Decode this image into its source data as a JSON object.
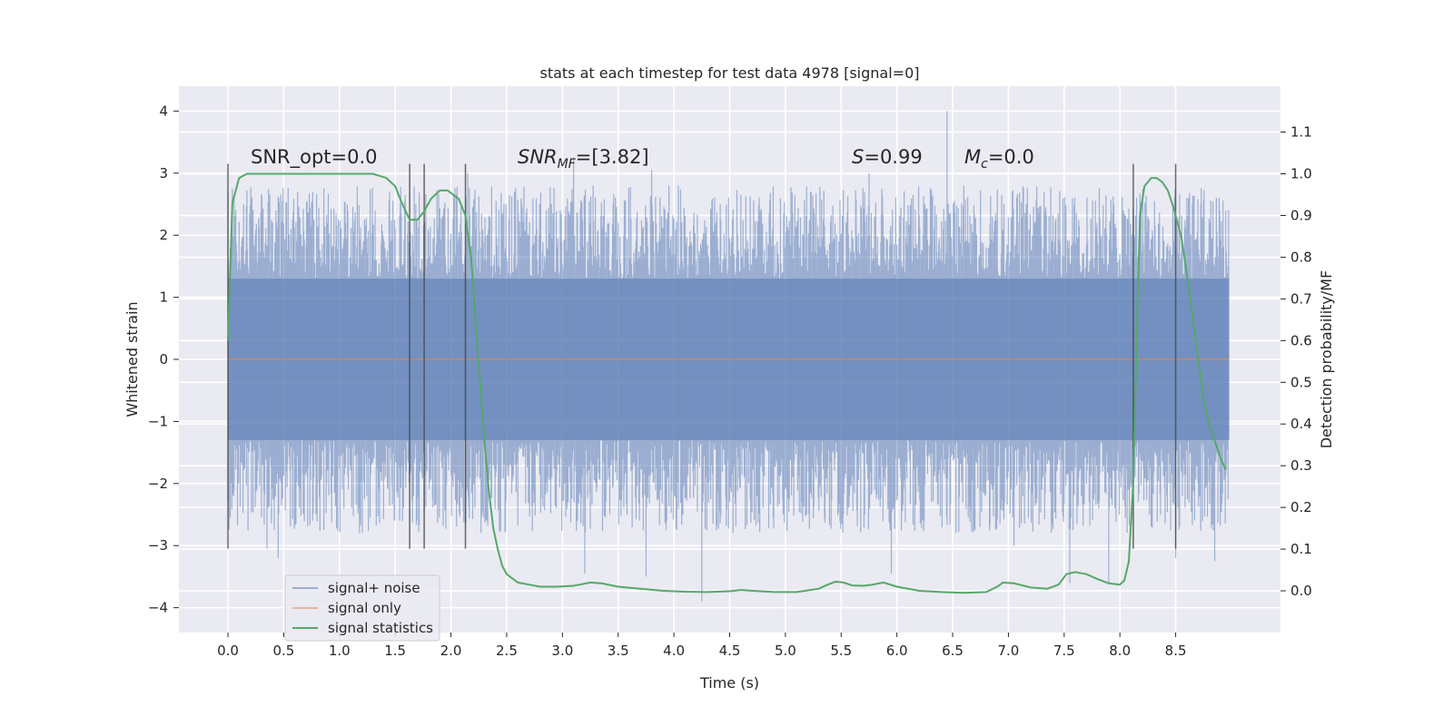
{
  "chart_data": {
    "type": "line",
    "title": "stats at each timestep for test data 4978 [signal=0]",
    "xlabel": "Time (s)",
    "ylabel": "Whitened strain",
    "y2label": "Detection probability/MF",
    "xlim": [
      -0.44,
      9.44
    ],
    "ylim": [
      -4.4,
      4.4
    ],
    "y2lim": [
      -0.1,
      1.21
    ],
    "xticks": [
      0.0,
      0.5,
      1.0,
      1.5,
      2.0,
      2.5,
      3.0,
      3.5,
      4.0,
      4.5,
      5.0,
      5.5,
      6.0,
      6.5,
      7.0,
      7.5,
      8.0,
      8.5
    ],
    "xtick_labels": [
      "0.0",
      "0.5",
      "1.0",
      "1.5",
      "2.0",
      "2.5",
      "3.0",
      "3.5",
      "4.0",
      "4.5",
      "5.0",
      "5.5",
      "6.0",
      "6.5",
      "7.0",
      "7.5",
      "8.0",
      "8.5"
    ],
    "yticks": [
      4,
      3,
      2,
      1,
      0,
      -1,
      -2,
      -3,
      -4
    ],
    "ytick_labels": [
      "4",
      "3",
      "2",
      "1",
      "0",
      "−1",
      "−2",
      "−3",
      "−4"
    ],
    "y2ticks": [
      1.1,
      1.0,
      0.9,
      0.8,
      0.7,
      0.6,
      0.5,
      0.4,
      0.3,
      0.2,
      0.1,
      0.0
    ],
    "y2tick_labels": [
      "1.1",
      "1.0",
      "0.9",
      "0.8",
      "0.7",
      "0.6",
      "0.5",
      "0.4",
      "0.3",
      "0.2",
      "0.1",
      "0.0"
    ],
    "annotations": {
      "snr_opt": "SNR_opt=0.0",
      "snr_mf_main": "SNR",
      "snr_mf_sub": "MF",
      "snr_mf_value": "=[3.82]",
      "s_main": "S",
      "s_value": "=0.99",
      "mc_main": "M",
      "mc_sub": "c",
      "mc_value": "=0.0"
    },
    "vlines": [
      0.0,
      1.63,
      1.76,
      2.13,
      8.12,
      8.5
    ],
    "vline_range": [
      -3.05,
      3.15
    ],
    "noise": {
      "t_start": 0.0,
      "t_end": 8.98,
      "core_amplitude": 1.3,
      "peak_amplitude": 2.8,
      "outliers": [
        {
          "t": 0.0,
          "v": 2.7
        },
        {
          "t": 0.35,
          "v": -3.05
        },
        {
          "t": 0.45,
          "v": -3.2
        },
        {
          "t": 1.45,
          "v": 2.7
        },
        {
          "t": 2.15,
          "v": 3.0
        },
        {
          "t": 3.1,
          "v": 3.25
        },
        {
          "t": 3.2,
          "v": -3.45
        },
        {
          "t": 3.8,
          "v": 3.05
        },
        {
          "t": 3.75,
          "v": -3.5
        },
        {
          "t": 4.25,
          "v": -3.9
        },
        {
          "t": 5.75,
          "v": 3.0
        },
        {
          "t": 5.95,
          "v": -3.45
        },
        {
          "t": 6.45,
          "v": 4.0
        },
        {
          "t": 6.6,
          "v": 2.8
        },
        {
          "t": 7.05,
          "v": -3.0
        },
        {
          "t": 7.55,
          "v": -3.6
        },
        {
          "t": 7.9,
          "v": -3.6
        },
        {
          "t": 8.5,
          "v": -3.2
        },
        {
          "t": 8.6,
          "v": 2.6
        },
        {
          "t": 8.85,
          "v": -3.25
        }
      ]
    },
    "series": [
      {
        "name": "signal+ noise",
        "axis": "left",
        "color": "#4c72b0",
        "opacity": 0.5
      },
      {
        "name": "signal only",
        "axis": "left",
        "color": "#dd8452",
        "opacity": 0.5,
        "x": [
          0.0,
          8.98
        ],
        "y": [
          0.0,
          0.0
        ]
      },
      {
        "name": "signal statistics",
        "axis": "right",
        "color": "#55a868",
        "x": [
          0.0,
          0.04,
          0.1,
          0.17,
          0.3,
          0.5,
          0.8,
          1.1,
          1.3,
          1.42,
          1.5,
          1.56,
          1.63,
          1.7,
          1.76,
          1.82,
          1.9,
          1.97,
          2.02,
          2.07,
          2.13,
          2.18,
          2.22,
          2.26,
          2.3,
          2.34,
          2.38,
          2.42,
          2.46,
          2.5,
          2.55,
          2.6,
          2.7,
          2.8,
          2.95,
          3.1,
          3.25,
          3.35,
          3.5,
          3.7,
          3.9,
          4.1,
          4.3,
          4.5,
          4.6,
          4.7,
          4.9,
          5.1,
          5.3,
          5.38,
          5.45,
          5.52,
          5.6,
          5.7,
          5.78,
          5.88,
          6.0,
          6.2,
          6.4,
          6.6,
          6.8,
          6.9,
          6.95,
          7.05,
          7.2,
          7.35,
          7.45,
          7.52,
          7.6,
          7.7,
          7.8,
          7.9,
          8.0,
          8.04,
          8.08,
          8.12,
          8.15,
          8.18,
          8.22,
          8.28,
          8.33,
          8.38,
          8.43,
          8.48,
          8.55,
          8.6,
          8.65,
          8.7,
          8.75,
          8.8,
          8.85,
          8.9,
          8.95
        ],
        "y": [
          0.6,
          0.93,
          0.99,
          1.0,
          1.0,
          1.0,
          1.0,
          1.0,
          1.0,
          0.99,
          0.97,
          0.93,
          0.89,
          0.89,
          0.91,
          0.94,
          0.96,
          0.96,
          0.95,
          0.94,
          0.9,
          0.8,
          0.65,
          0.5,
          0.36,
          0.24,
          0.15,
          0.1,
          0.06,
          0.04,
          0.03,
          0.02,
          0.015,
          0.01,
          0.01,
          0.012,
          0.02,
          0.018,
          0.01,
          0.005,
          0.0,
          -0.002,
          -0.003,
          -0.001,
          0.002,
          0.0,
          -0.003,
          -0.003,
          0.005,
          0.015,
          0.022,
          0.02,
          0.013,
          0.012,
          0.015,
          0.02,
          0.01,
          0.0,
          -0.003,
          -0.005,
          -0.003,
          0.01,
          0.02,
          0.018,
          0.008,
          0.005,
          0.015,
          0.04,
          0.045,
          0.04,
          0.028,
          0.018,
          0.015,
          0.025,
          0.07,
          0.26,
          0.6,
          0.9,
          0.97,
          0.99,
          0.99,
          0.98,
          0.96,
          0.92,
          0.85,
          0.76,
          0.66,
          0.56,
          0.46,
          0.4,
          0.36,
          0.32,
          0.29
        ]
      }
    ],
    "legend_position": "lower-left"
  }
}
